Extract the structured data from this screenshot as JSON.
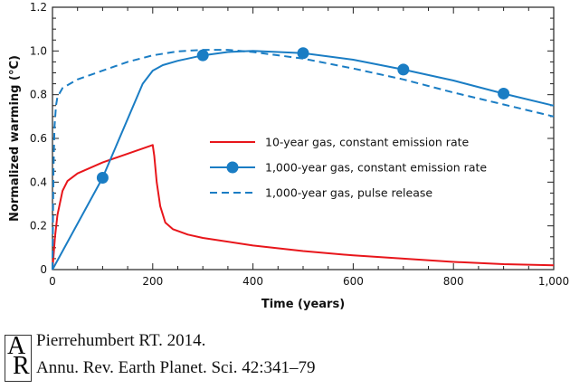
{
  "chart_data": {
    "type": "line",
    "xlabel": "Time (years)",
    "ylabel": "Normalized warming (°C)",
    "xlim": [
      0,
      1000
    ],
    "ylim": [
      0,
      1.2
    ],
    "xticks": [
      "0",
      "200",
      "400",
      "600",
      "800",
      "1,000"
    ],
    "xtick_values": [
      0,
      200,
      400,
      600,
      800,
      1000
    ],
    "yticks": [
      "0",
      "0.2",
      "0.4",
      "0.6",
      "0.8",
      "1.0",
      "1.2"
    ],
    "ytick_values": [
      0,
      0.2,
      0.4,
      0.6,
      0.8,
      1.0,
      1.2
    ],
    "legend_placement": "center-right",
    "series": [
      {
        "name": "10-year gas, constant emission rate",
        "color": "#e8161b",
        "style": "solid",
        "markers": false,
        "x": [
          0,
          5,
          10,
          20,
          30,
          50,
          100,
          150,
          200,
          203,
          208,
          215,
          225,
          240,
          270,
          300,
          400,
          500,
          600,
          700,
          800,
          900,
          1000
        ],
        "y": [
          0,
          0.15,
          0.25,
          0.36,
          0.405,
          0.44,
          0.49,
          0.53,
          0.57,
          0.52,
          0.4,
          0.29,
          0.215,
          0.185,
          0.16,
          0.145,
          0.11,
          0.085,
          0.065,
          0.05,
          0.035,
          0.025,
          0.02
        ]
      },
      {
        "name": "1,000-year gas, constant emission rate",
        "color": "#1a7dc4",
        "style": "solid",
        "markers": true,
        "x": [
          0,
          100,
          180,
          200,
          220,
          250,
          300,
          350,
          400,
          500,
          600,
          700,
          800,
          900,
          1000
        ],
        "y": [
          0,
          0.42,
          0.85,
          0.91,
          0.935,
          0.955,
          0.98,
          0.995,
          1.0,
          0.99,
          0.96,
          0.915,
          0.865,
          0.805,
          0.75
        ],
        "marker_x": [
          100,
          300,
          500,
          700,
          900
        ],
        "marker_y": [
          0.42,
          0.98,
          0.99,
          0.915,
          0.805
        ]
      },
      {
        "name": "1,000-year gas, pulse release",
        "color": "#1a7dc4",
        "style": "dashed",
        "markers": false,
        "x": [
          0,
          1,
          2,
          4,
          7,
          10,
          20,
          50,
          100,
          150,
          200,
          250,
          300,
          350,
          400,
          500,
          600,
          700,
          800,
          900,
          1000
        ],
        "y": [
          0,
          0.25,
          0.45,
          0.65,
          0.75,
          0.79,
          0.83,
          0.87,
          0.91,
          0.95,
          0.98,
          0.998,
          1.005,
          1.005,
          0.995,
          0.965,
          0.92,
          0.87,
          0.81,
          0.755,
          0.7
        ]
      }
    ]
  },
  "citation": {
    "logo_letters": "AR",
    "line1": "Pierrehumbert RT. 2014.",
    "line2": "Annu. Rev. Earth Planet. Sci. 42:341–79"
  }
}
